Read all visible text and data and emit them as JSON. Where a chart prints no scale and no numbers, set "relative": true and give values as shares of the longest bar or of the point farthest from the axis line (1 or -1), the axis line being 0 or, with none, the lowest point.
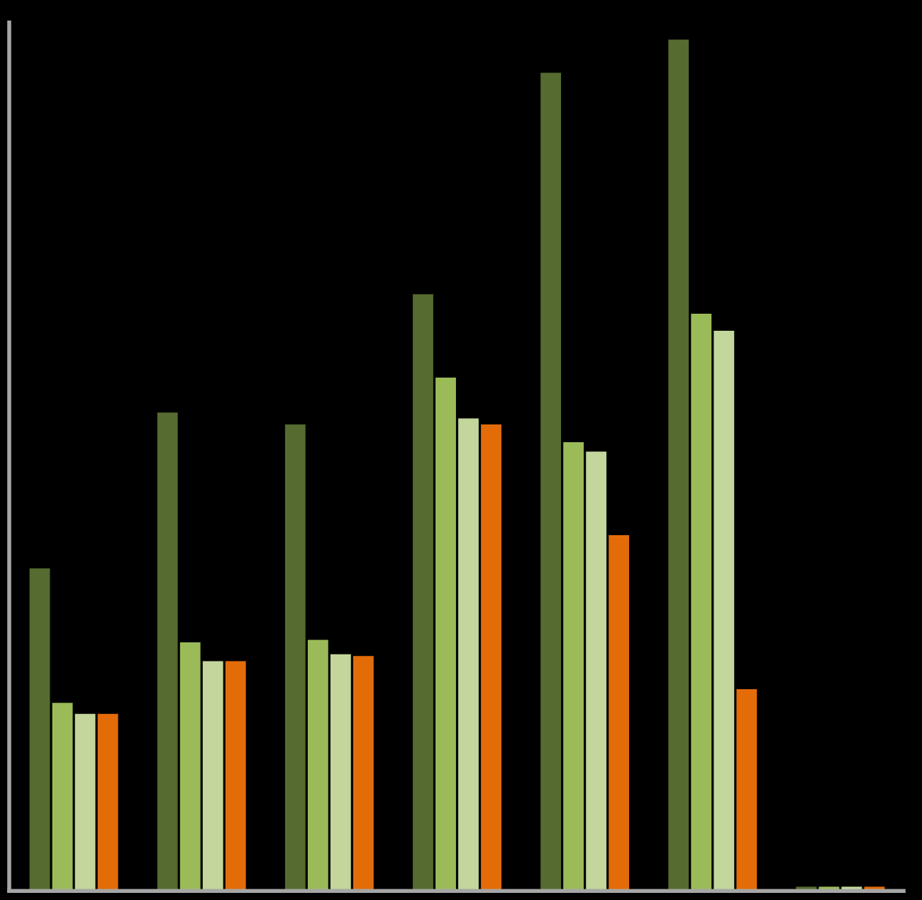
{
  "chart_data": {
    "type": "bar",
    "relative": true,
    "categories": [
      null,
      null,
      null,
      null,
      null,
      null,
      null
    ],
    "series": [
      {
        "color": "#556b2f",
        "values": [
          0.379,
          0.562,
          0.548,
          0.701,
          0.961,
          1,
          0.005
        ]
      },
      {
        "color": "#9bbb59",
        "values": [
          0.221,
          0.292,
          0.295,
          0.603,
          0.527,
          0.678,
          0.005
        ]
      },
      {
        "color": "#c3d69b",
        "values": [
          0.208,
          0.27,
          0.278,
          0.555,
          0.516,
          0.658,
          0.005
        ]
      },
      {
        "color": "#e36c09",
        "values": [
          0.208,
          0.27,
          0.276,
          0.548,
          0.418,
          0.237,
          0.005
        ]
      }
    ],
    "grid": false,
    "legend": false
  }
}
